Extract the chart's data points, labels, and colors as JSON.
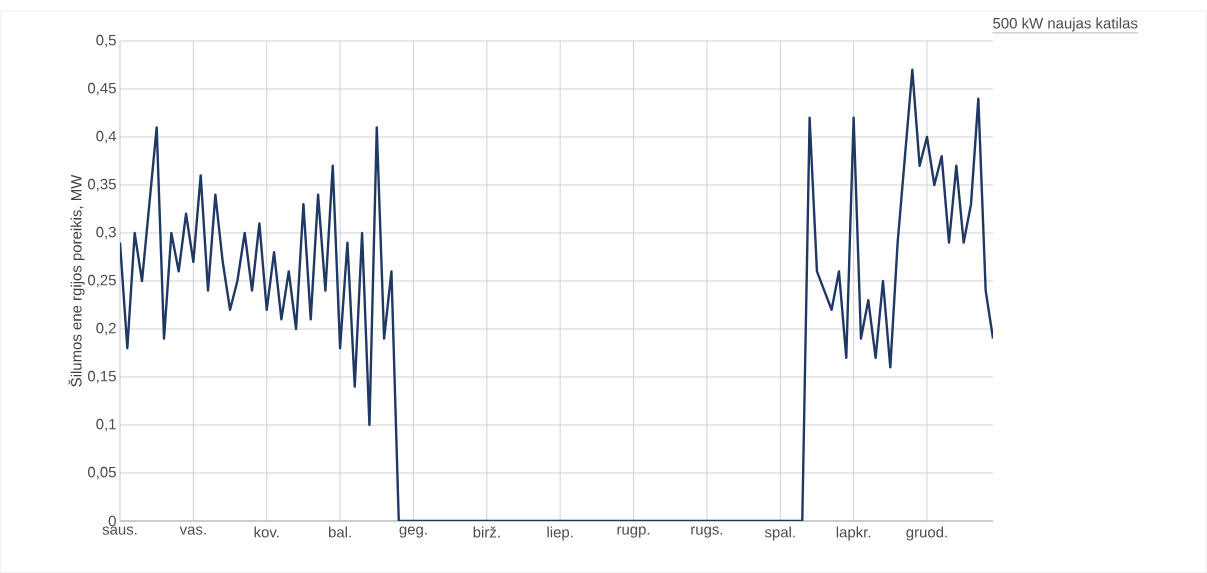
{
  "chart_data": {
    "type": "line",
    "title": "500 kW naujas katilas",
    "ylabel": "Šilumos ene rgijos poreikis, MW",
    "categories": [
      "saus.",
      null,
      null,
      null,
      null,
      null,
      null,
      null,
      null,
      null,
      "vas.",
      null,
      null,
      null,
      null,
      null,
      null,
      null,
      null,
      null,
      "kov.",
      null,
      null,
      null,
      null,
      null,
      null,
      null,
      null,
      null,
      "bal.",
      null,
      null,
      null,
      null,
      null,
      null,
      null,
      null,
      null,
      "geg.",
      null,
      null,
      null,
      null,
      null,
      null,
      null,
      null,
      null,
      "birž.",
      null,
      null,
      null,
      null,
      null,
      null,
      null,
      null,
      null,
      "liep.",
      null,
      null,
      null,
      null,
      null,
      null,
      null,
      null,
      null,
      "rugp.",
      null,
      null,
      null,
      null,
      null,
      null,
      null,
      null,
      null,
      "rugs.",
      null,
      null,
      null,
      null,
      null,
      null,
      null,
      null,
      null,
      "spal.",
      null,
      null,
      null,
      null,
      null,
      null,
      null,
      null,
      null,
      "lapkr.",
      null,
      null,
      null,
      null,
      null,
      null,
      null,
      null,
      null,
      "gruod.",
      null,
      null,
      null,
      null,
      null,
      null,
      null,
      null,
      null
    ],
    "ylim": [
      0,
      0.5
    ],
    "yticks": [
      0,
      {
        "value": 0.05,
        "label": "0,05"
      },
      {
        "value": 0.1,
        "label": "0,1"
      },
      {
        "value": 0.15,
        "label": "0,15"
      },
      {
        "value": 0.2,
        "label": "0,2"
      },
      {
        "value": 0.25,
        "label": "0,25"
      },
      {
        "value": 0.3,
        "label": "0,3"
      },
      {
        "value": 0.35,
        "label": "0,35"
      },
      {
        "value": 0.4,
        "label": "0,4"
      },
      {
        "value": 0.45,
        "label": "0,45"
      },
      {
        "value": 0.5,
        "label": "0,5"
      }
    ],
    "grid": true,
    "marker": "none",
    "line_style": "solid",
    "series": [
      {
        "color": "#1f3864",
        "values": [
          0.29,
          0.18,
          0.3,
          0.25,
          0.33,
          0.41,
          0.19,
          0.3,
          0.26,
          0.32,
          0.27,
          0.36,
          0.24,
          0.34,
          0.27,
          0.22,
          0.25,
          0.3,
          0.24,
          0.31,
          0.22,
          0.28,
          0.21,
          0.26,
          0.2,
          0.33,
          0.21,
          0.34,
          0.24,
          0.37,
          0.18,
          0.29,
          0.14,
          0.3,
          0.1,
          0.41,
          0.19,
          0.26,
          0,
          0,
          0,
          0,
          0,
          0,
          0,
          0,
          0,
          0,
          0,
          0,
          0,
          0,
          0,
          0,
          0,
          0,
          0,
          0,
          0,
          0,
          0,
          0,
          0,
          0,
          0,
          0,
          0,
          0,
          0,
          0,
          0,
          0,
          0,
          0,
          0,
          0,
          0,
          0,
          0,
          0,
          0,
          0,
          0,
          0,
          0,
          0,
          0,
          0,
          0,
          0,
          0,
          0,
          0,
          0,
          0.42,
          0.26,
          0.24,
          0.22,
          0.26,
          0.17,
          0.42,
          0.19,
          0.23,
          0.17,
          0.25,
          0.16,
          0.29,
          0.38,
          0.47,
          0.37,
          0.4,
          0.35,
          0.38,
          0.29,
          0.37,
          0.29,
          0.33,
          0.44,
          0.24,
          0.19
        ]
      }
    ]
  }
}
